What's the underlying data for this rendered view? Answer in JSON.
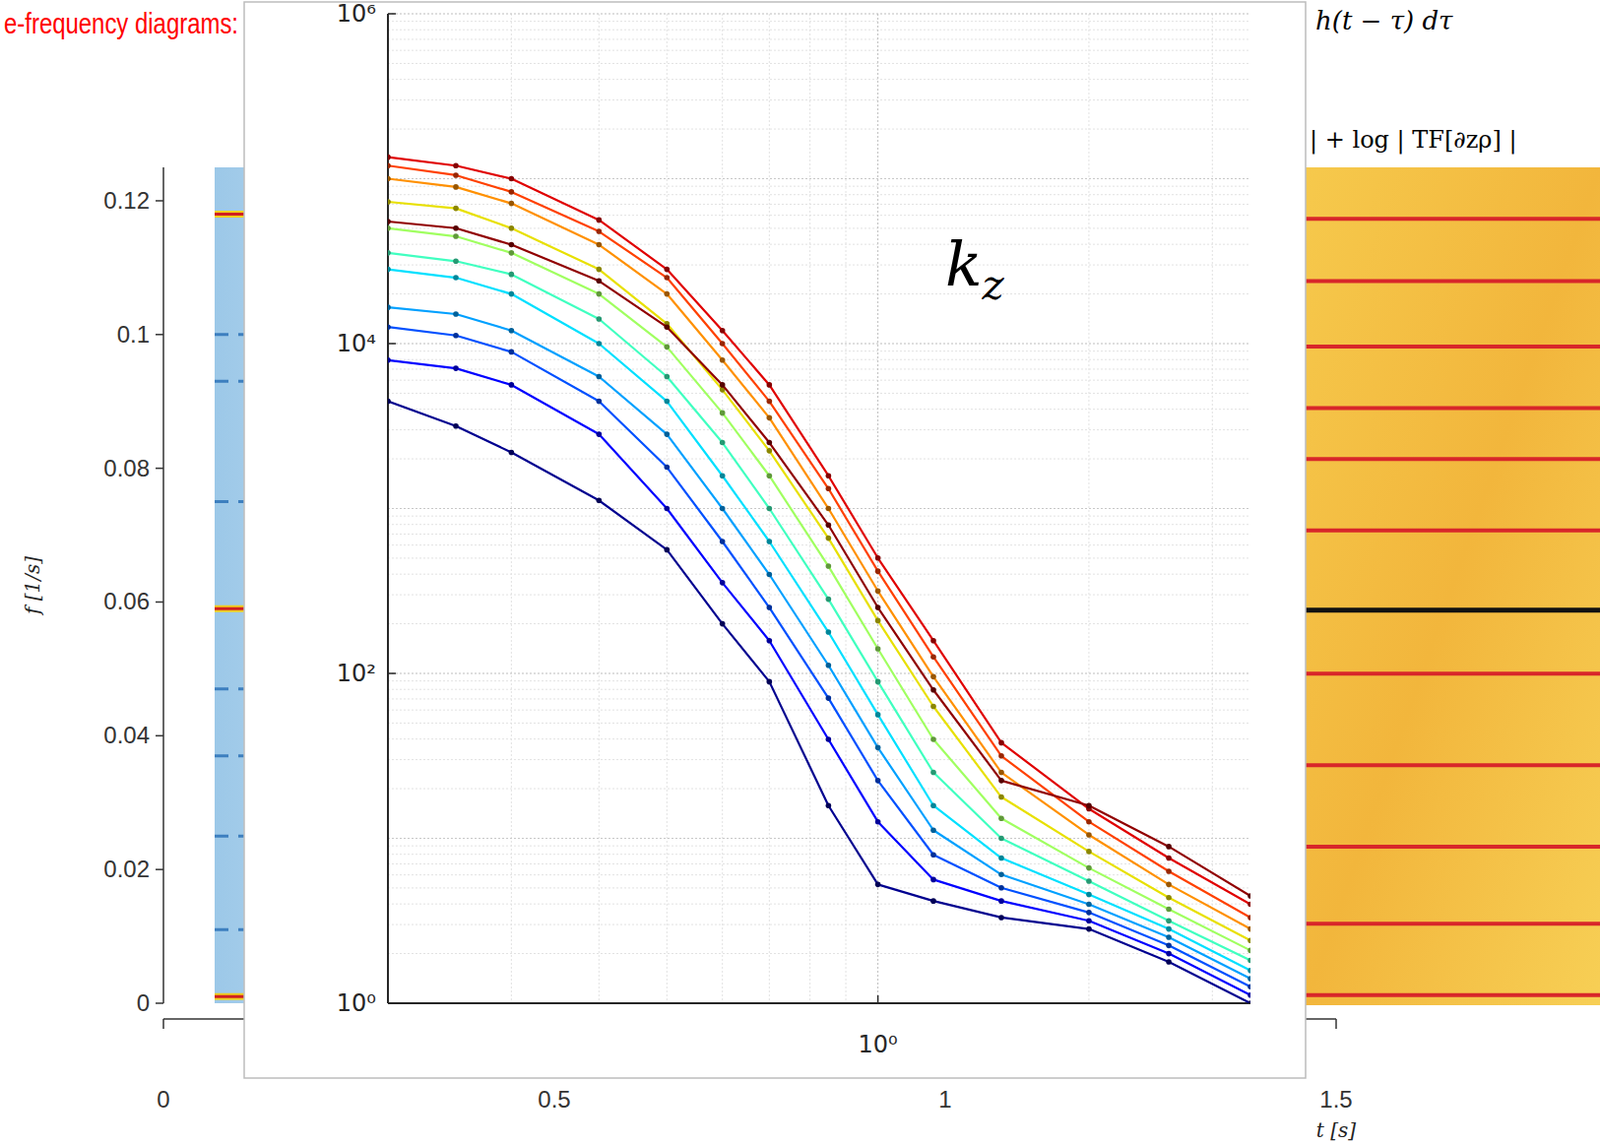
{
  "chart_data": [
    {
      "type": "line",
      "log": true,
      "grid": true,
      "marker": "dot",
      "line_style": "solid",
      "annotation": "kz",
      "x": [
        0.2,
        0.25,
        0.3,
        0.4,
        0.5,
        0.6,
        0.7,
        0.85,
        1.0,
        1.2,
        1.5,
        2.0,
        2.6,
        3.4
      ],
      "xlim": [
        0.2,
        3.4
      ],
      "xticks": [
        {
          "value": 1,
          "label": "10⁰"
        }
      ],
      "ylim": [
        1,
        1000000
      ],
      "yticks": [
        {
          "value": 1,
          "label": "10⁰"
        },
        {
          "value": 100,
          "label": "10²"
        },
        {
          "value": 10000,
          "label": "10⁴"
        },
        {
          "value": 1000000,
          "label": "10⁶"
        }
      ],
      "series": [
        {
          "color": "#00008f",
          "values": [
            4470,
            3160,
            2190,
            1120,
            562,
            200,
            89.1,
            15.8,
            5.25,
            4.17,
            3.31,
            2.82,
            1.78,
            1
          ]
        },
        {
          "color": "#0000ff",
          "values": [
            7940,
            7080,
            5620,
            2820,
            1000,
            355,
            158,
            39.8,
            12.6,
            5.62,
            4.17,
            3.16,
            2.0,
            1.12
          ]
        },
        {
          "color": "#0050ff",
          "values": [
            12600,
            11200,
            8910,
            4470,
            1780,
            631,
            251,
            70.8,
            22.4,
            7.94,
            5.01,
            3.55,
            2.24,
            1.26
          ]
        },
        {
          "color": "#00a0ff",
          "values": [
            16600,
            15100,
            12000,
            6310,
            2820,
            1000,
            398,
            112,
            35.5,
            11.2,
            6.03,
            3.98,
            2.51,
            1.41
          ]
        },
        {
          "color": "#00e0ff",
          "values": [
            28200,
            25100,
            20000,
            10000,
            4470,
            1580,
            631,
            178,
            56.2,
            15.8,
            7.59,
            4.57,
            2.82,
            1.58
          ]
        },
        {
          "color": "#40ffc0",
          "values": [
            35500,
            31600,
            26300,
            14100,
            6310,
            2510,
            1000,
            282,
            89.1,
            25.1,
            10,
            5.5,
            3.16,
            1.82
          ]
        },
        {
          "color": "#a0ff60",
          "values": [
            50100,
            44700,
            35500,
            20000,
            9550,
            3800,
            1580,
            447,
            141,
            39.8,
            13.2,
            6.61,
            3.72,
            2.09
          ]
        },
        {
          "color": "#e8e000",
          "values": [
            72400,
            66100,
            50100,
            28200,
            13200,
            5250,
            2240,
            661,
            209,
            63.1,
            17.8,
            8.32,
            4.37,
            2.4
          ]
        },
        {
          "color": "#ff9000",
          "values": [
            100000,
            89100,
            70800,
            39800,
            20000,
            7940,
            3550,
            1000,
            316,
            95.5,
            25.1,
            10.5,
            5.25,
            2.82
          ]
        },
        {
          "color": "#ff4000",
          "values": [
            120000,
            105000,
            83200,
            47900,
            25100,
            10000,
            4470,
            1320,
            417,
            126,
            31.6,
            12.6,
            6.31,
            3.31
          ]
        },
        {
          "color": "#e00000",
          "values": [
            135000,
            120000,
            100000,
            56200,
            28200,
            12000,
            5620,
            1580,
            501,
            158,
            38.0,
            15.1,
            7.59,
            3.98
          ]
        },
        {
          "color": "#900000",
          "values": [
            55000,
            50100,
            39800,
            24000,
            12600,
            5620,
            2510,
            794,
            251,
            79.4,
            22.4,
            15.8,
            8.91,
            4.47
          ]
        }
      ]
    },
    {
      "type": "spectrogram",
      "title": "e-frequency diagrams:",
      "formula": "h(t − τ) dτ",
      "xlabel": "t [s]",
      "ylabel": "f [1/s]",
      "xlim": [
        0,
        1.5
      ],
      "xticks": [
        0,
        0.5,
        1,
        1.5
      ],
      "ylim": [
        0,
        0.125
      ],
      "yticks": [
        0,
        0.02,
        0.04,
        0.06,
        0.08,
        0.1,
        0.12
      ],
      "left_bands": [
        0.118,
        0.059,
        0.001
      ],
      "left_faint_bands": [
        0.1,
        0.093,
        0.075,
        0.047,
        0.037,
        0.025,
        0.011
      ],
      "right_title": "| + log | TF[∂zρ] |",
      "right_bands": [
        0.1173,
        0.108,
        0.0982,
        0.089,
        0.0814,
        0.0707,
        0.0493,
        0.0356,
        0.0234,
        0.0119,
        0.0012
      ],
      "right_main_band": 0.0588
    }
  ]
}
